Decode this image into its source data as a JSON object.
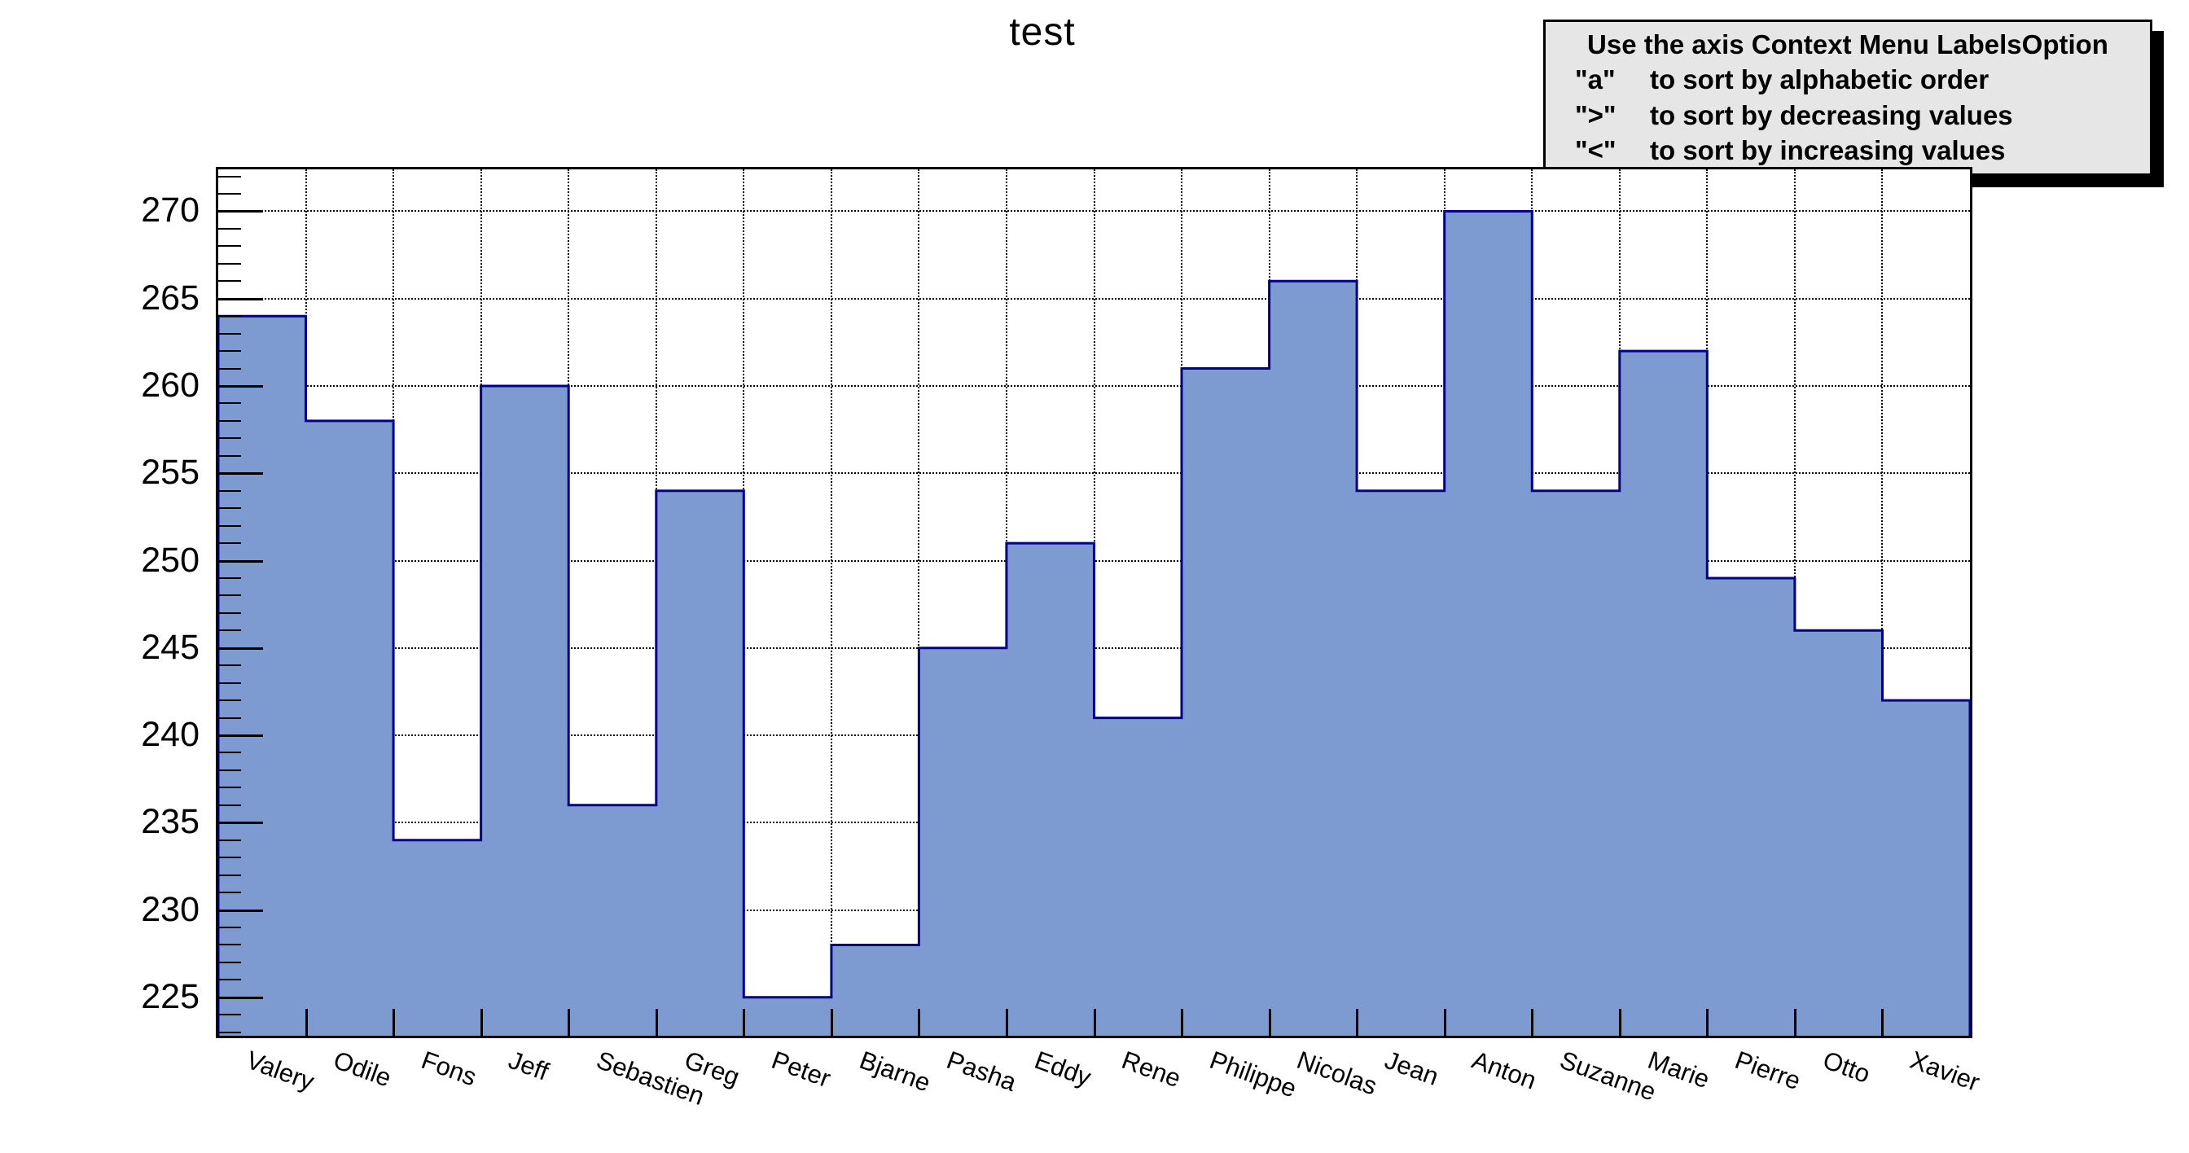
{
  "title": "test",
  "legend": {
    "title": "Use the axis Context Menu LabelsOption",
    "items": [
      {
        "key": "\"a\"",
        "text": "to sort by alphabetic order"
      },
      {
        "key": "\">\"",
        "text": "to sort by decreasing values"
      },
      {
        "key": "\"<\"",
        "text": "to sort by increasing values"
      }
    ]
  },
  "chart_data": {
    "type": "bar",
    "style": "root-histogram-step",
    "title": "test",
    "xlabel": "",
    "ylabel": "",
    "categories": [
      "Valery",
      "Odile",
      "Fons",
      "Jeff",
      "Sebastien",
      "Greg",
      "Peter",
      "Bjarne",
      "Pasha",
      "Eddy",
      "Rene",
      "Philippe",
      "Nicolas",
      "Jean",
      "Anton",
      "Suzanne",
      "Marie",
      "Pierre",
      "Otto",
      "Xavier"
    ],
    "values": [
      264,
      258,
      234,
      260,
      236,
      254,
      225,
      228,
      245,
      251,
      241,
      261,
      266,
      254,
      270,
      254,
      262,
      249,
      246,
      242
    ],
    "ylim": [
      222.8,
      272.4
    ],
    "yticks": [
      225,
      230,
      235,
      240,
      245,
      250,
      255,
      260,
      265,
      270
    ],
    "minor_tick_step": 1,
    "grid": "dotted horizontal lines at major y ticks, dotted vertical lines at bin boundaries, drawn beneath bars",
    "legend_position": "top-right",
    "x_label_rotation_deg": 20
  },
  "colors": {
    "background": "#ffffff",
    "bar_fill": "#7d9ad1",
    "bar_outline": "#00008b",
    "frame": "#000000",
    "grid": "#000000",
    "text": "#000000",
    "legend_bg": "#e6e6e6",
    "legend_border": "#000000",
    "legend_shadow": "#000000"
  }
}
